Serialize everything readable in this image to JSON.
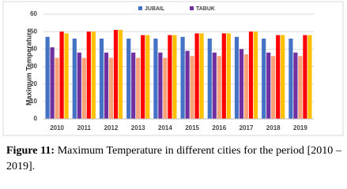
{
  "chart_data": {
    "type": "bar",
    "y_label": "Maximum Temperature",
    "categories": [
      "2010",
      "2011",
      "2012",
      "2013",
      "2014",
      "2015",
      "2016",
      "2017",
      "2018",
      "2019"
    ],
    "series": [
      {
        "name": "JUBAIL",
        "color": "#4472c4",
        "values": [
          47,
          46,
          46,
          46,
          46,
          47,
          46,
          47,
          46,
          46
        ]
      },
      {
        "name": "TABUK",
        "color": "#7030a0",
        "values": [
          41,
          38,
          38,
          38,
          38,
          39,
          38,
          40,
          38,
          38
        ]
      },
      {
        "color": "#f8a27a",
        "values": [
          35,
          35,
          35,
          35,
          35,
          36,
          36,
          37,
          36,
          36
        ]
      },
      {
        "color": "#ff0000",
        "values": [
          50,
          50,
          51,
          48,
          48,
          49,
          49,
          50,
          48,
          48
        ]
      },
      {
        "color": "#ffc000",
        "values": [
          49,
          50,
          51,
          48,
          48,
          49,
          49,
          50,
          48,
          48
        ]
      }
    ],
    "ylim": [
      0,
      60
    ],
    "yticks": [
      0,
      10,
      20,
      30,
      40,
      50,
      60
    ],
    "grid": true
  },
  "caption": {
    "label": "Figure 11:",
    "text": "Maximum Temperature in different cities for the period [2010 – 2019]."
  }
}
